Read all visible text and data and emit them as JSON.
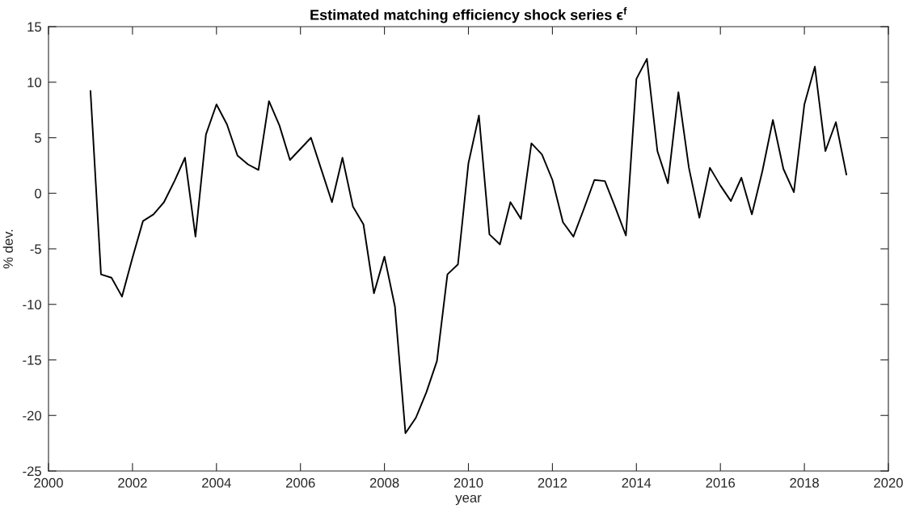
{
  "chart_data": {
    "type": "line",
    "title": "Estimated matching efficiency shock series ϵ$^{f}$",
    "xlabel": "year",
    "ylabel": "% dev.",
    "x": [
      2001,
      2001.25,
      2001.5,
      2001.75,
      2002,
      2002.25,
      2002.5,
      2002.75,
      2003,
      2003.25,
      2003.5,
      2003.75,
      2004,
      2004.25,
      2004.5,
      2004.75,
      2005,
      2005.25,
      2005.5,
      2005.75,
      2006,
      2006.25,
      2006.5,
      2006.75,
      2007,
      2007.25,
      2007.5,
      2007.75,
      2008,
      2008.25,
      2008.5,
      2008.75,
      2009,
      2009.25,
      2009.5,
      2009.75,
      2010,
      2010.25,
      2010.5,
      2010.75,
      2011,
      2011.25,
      2011.5,
      2011.75,
      2012,
      2012.25,
      2012.5,
      2012.75,
      2013,
      2013.25,
      2013.5,
      2013.75,
      2014,
      2014.25,
      2014.5,
      2014.75,
      2015,
      2015.25,
      2015.5,
      2015.75,
      2016,
      2016.25,
      2016.5,
      2016.75,
      2017,
      2017.25,
      2017.5,
      2017.75,
      2018,
      2018.25,
      2018.5,
      2018.75,
      2019
    ],
    "series": [
      {
        "color": "#000000",
        "values": [
          9.2,
          -7.3,
          -7.6,
          -9.3,
          -5.8,
          -2.5,
          -1.9,
          -0.8,
          1.1,
          3.2,
          -3.9,
          5.3,
          8.0,
          6.2,
          3.4,
          2.6,
          2.1,
          8.3,
          6.1,
          3.0,
          4.0,
          5.0,
          2.1,
          -0.8,
          3.2,
          -1.2,
          -2.8,
          -9.0,
          -5.7,
          -10.2,
          -21.6,
          -20.2,
          -17.9,
          -15.1,
          -7.3,
          -6.4,
          2.7,
          7.0,
          -3.7,
          -4.6,
          -0.8,
          -2.3,
          4.5,
          3.5,
          1.2,
          -2.6,
          -3.9,
          -1.4,
          1.2,
          1.1,
          -1.3,
          -3.8,
          10.3,
          12.1,
          3.8,
          0.9,
          9.1,
          2.3,
          -2.2,
          2.3,
          0.7,
          -0.7,
          1.4,
          -1.9,
          2.0,
          6.6,
          2.2,
          0.1,
          8.0,
          11.4,
          3.8,
          6.4,
          1.7
        ]
      }
    ],
    "xlim": [
      2000,
      2020
    ],
    "xticks": [
      2000,
      2002,
      2004,
      2006,
      2008,
      2010,
      2012,
      2014,
      2016,
      2018,
      2020
    ],
    "ylim": [
      -25,
      15
    ],
    "yticks": [
      -25,
      -20,
      -15,
      -10,
      -5,
      0,
      5,
      10,
      15
    ]
  }
}
